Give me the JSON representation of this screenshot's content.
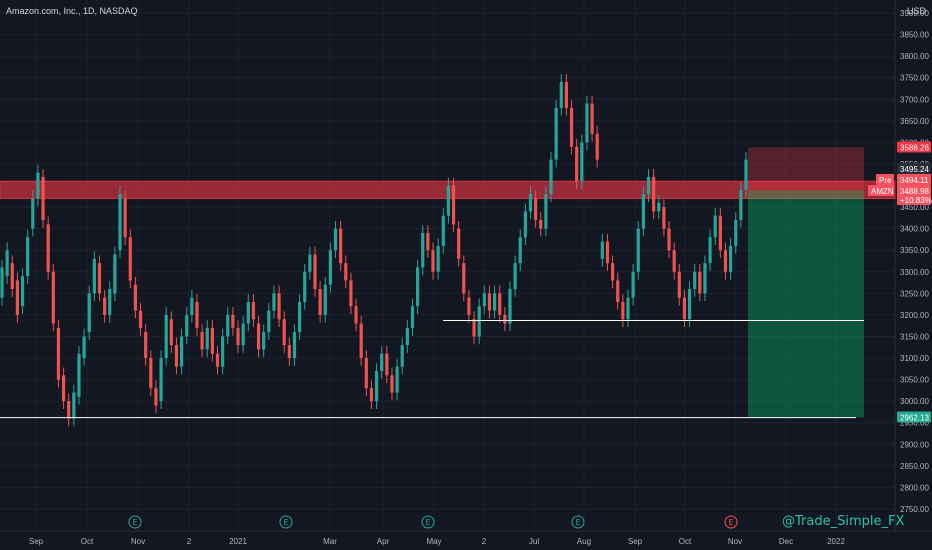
{
  "header": {
    "title": "Amazon.com, Inc., 1D, NASDAQ",
    "currency": "USD"
  },
  "watermark": "@Trade_Simple_FX",
  "colors": {
    "background": "#131722",
    "up": "#26a69a",
    "down": "#ef5350",
    "grid": "#1e222d",
    "resistance_zone": "#f2364599",
    "stop_zone": "#f236454d",
    "target_zone": "#00e6764d"
  },
  "price_tags": {
    "stop": "3588.26",
    "last": "3495.24",
    "pre_label": "Pre",
    "pre_value": "3494.11",
    "symbol": "AMZN",
    "symbol_value": "3488.98",
    "change": "+10.83%",
    "target": "2962.13"
  },
  "chart_data": {
    "type": "candlestick",
    "title": "Amazon.com, Inc., 1D, NASDAQ",
    "y_axis": {
      "range": [
        2700,
        3950
      ],
      "ticks": [
        "2750.00",
        "2800.00",
        "2850.00",
        "2900.00",
        "2950.00",
        "3000.00",
        "3050.00",
        "3100.00",
        "3150.00",
        "3200.00",
        "3250.00",
        "3300.00",
        "3350.00",
        "3400.00",
        "3450.00",
        "3500.00",
        "3550.00",
        "3600.00",
        "3650.00",
        "3700.00",
        "3750.00",
        "3800.00",
        "3850.00",
        "3900.00"
      ]
    },
    "x_axis": {
      "ticks": [
        "Sep",
        "Oct",
        "Nov",
        "2",
        "2021",
        "Mar",
        "Apr",
        "May",
        "2",
        "Jul",
        "Aug",
        "Sep",
        "Oct",
        "Nov",
        "Dec",
        "2022"
      ]
    },
    "earnings_markers": [
      "Oct",
      "2021",
      "Apr",
      "Jul",
      "Oct"
    ],
    "levels": {
      "resistance_zone": [
        3470,
        3510
      ],
      "support_mid": 3187,
      "support_low": 2962,
      "stop": 3588.26,
      "entry": 3488.98,
      "target": 2962.13
    },
    "series": [
      {
        "values": [
          [
            3240,
            3310
          ],
          [
            3290,
            3350
          ],
          [
            3320,
            3260
          ],
          [
            3280,
            3200
          ],
          [
            3220,
            3290
          ],
          [
            3290,
            3380
          ],
          [
            3400,
            3470
          ],
          [
            3470,
            3530
          ],
          [
            3520,
            3420
          ],
          [
            3410,
            3300
          ],
          [
            3300,
            3180
          ],
          [
            3170,
            3050
          ],
          [
            3060,
            3000
          ],
          [
            3000,
            2960
          ],
          [
            2960,
            3020
          ],
          [
            3010,
            3110
          ],
          [
            3100,
            3150
          ],
          [
            3160,
            3250
          ],
          [
            3250,
            3330
          ],
          [
            3320,
            3250
          ],
          [
            3240,
            3200
          ],
          [
            3200,
            3260
          ],
          [
            3250,
            3340
          ],
          [
            3350,
            3480
          ],
          [
            3470,
            3380
          ],
          [
            3380,
            3280
          ],
          [
            3270,
            3210
          ],
          [
            3210,
            3170
          ],
          [
            3160,
            3100
          ],
          [
            3100,
            3030
          ],
          [
            3030,
            2990
          ],
          [
            3000,
            3100
          ],
          [
            3100,
            3200
          ],
          [
            3190,
            3130
          ],
          [
            3130,
            3080
          ],
          [
            3080,
            3150
          ],
          [
            3150,
            3200
          ],
          [
            3200,
            3240
          ],
          [
            3230,
            3170
          ],
          [
            3160,
            3120
          ],
          [
            3120,
            3170
          ],
          [
            3170,
            3110
          ],
          [
            3110,
            3080
          ],
          [
            3080,
            3150
          ],
          [
            3150,
            3200
          ],
          [
            3200,
            3170
          ],
          [
            3170,
            3130
          ],
          [
            3130,
            3180
          ],
          [
            3180,
            3230
          ],
          [
            3230,
            3190
          ],
          [
            3180,
            3120
          ],
          [
            3120,
            3160
          ],
          [
            3160,
            3210
          ],
          [
            3210,
            3250
          ],
          [
            3250,
            3190
          ],
          [
            3190,
            3130
          ],
          [
            3130,
            3100
          ],
          [
            3100,
            3160
          ],
          [
            3160,
            3230
          ],
          [
            3230,
            3300
          ],
          [
            3300,
            3340
          ],
          [
            3340,
            3260
          ],
          [
            3260,
            3200
          ],
          [
            3200,
            3270
          ],
          [
            3270,
            3350
          ],
          [
            3350,
            3400
          ],
          [
            3400,
            3320
          ],
          [
            3320,
            3280
          ],
          [
            3280,
            3220
          ],
          [
            3220,
            3180
          ],
          [
            3180,
            3100
          ],
          [
            3100,
            3030
          ],
          [
            3030,
            3000
          ],
          [
            3000,
            3070
          ],
          [
            3070,
            3110
          ],
          [
            3110,
            3060
          ],
          [
            3060,
            3020
          ],
          [
            3020,
            3080
          ],
          [
            3080,
            3130
          ],
          [
            3130,
            3170
          ],
          [
            3170,
            3220
          ],
          [
            3220,
            3310
          ],
          [
            3310,
            3390
          ],
          [
            3390,
            3350
          ],
          [
            3350,
            3300
          ],
          [
            3300,
            3360
          ],
          [
            3360,
            3430
          ],
          [
            3430,
            3500
          ],
          [
            3500,
            3410
          ],
          [
            3400,
            3330
          ],
          [
            3320,
            3250
          ],
          [
            3240,
            3200
          ],
          [
            3190,
            3150
          ],
          [
            3150,
            3220
          ],
          [
            3220,
            3250
          ],
          [
            3250,
            3210
          ],
          [
            3210,
            3250
          ],
          [
            3250,
            3200
          ],
          [
            3200,
            3180
          ],
          [
            3180,
            3260
          ],
          [
            3260,
            3320
          ],
          [
            3320,
            3380
          ],
          [
            3380,
            3440
          ],
          [
            3440,
            3480
          ],
          [
            3470,
            3420
          ],
          [
            3420,
            3400
          ],
          [
            3400,
            3480
          ],
          [
            3480,
            3560
          ],
          [
            3560,
            3680
          ],
          [
            3680,
            3740
          ],
          [
            3740,
            3680
          ],
          [
            3680,
            3590
          ],
          [
            3590,
            3510
          ],
          [
            3510,
            3600
          ],
          [
            3600,
            3690
          ],
          [
            3690,
            3620
          ],
          [
            3620,
            3560
          ],
          [
            3330,
            3370
          ],
          [
            3370,
            3320
          ],
          [
            3320,
            3280
          ],
          [
            3280,
            3230
          ],
          [
            3230,
            3190
          ],
          [
            3190,
            3240
          ],
          [
            3240,
            3300
          ],
          [
            3300,
            3400
          ],
          [
            3400,
            3480
          ],
          [
            3480,
            3520
          ],
          [
            3520,
            3440
          ],
          [
            3440,
            3460
          ],
          [
            3450,
            3400
          ],
          [
            3400,
            3350
          ],
          [
            3350,
            3300
          ],
          [
            3300,
            3240
          ],
          [
            3240,
            3190
          ],
          [
            3190,
            3260
          ],
          [
            3260,
            3300
          ],
          [
            3300,
            3250
          ],
          [
            3250,
            3320
          ],
          [
            3320,
            3380
          ],
          [
            3380,
            3430
          ],
          [
            3430,
            3350
          ],
          [
            3350,
            3300
          ],
          [
            3300,
            3360
          ],
          [
            3360,
            3420
          ],
          [
            3420,
            3490
          ],
          [
            3490,
            3560
          ]
        ]
      }
    ]
  }
}
